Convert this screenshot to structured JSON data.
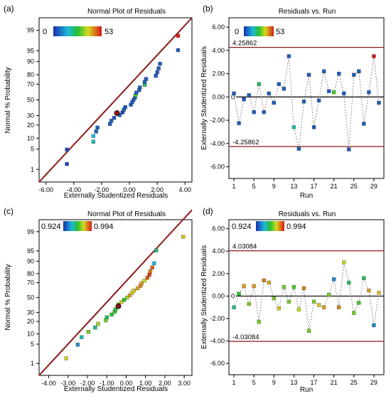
{
  "chart_data": [
    {
      "panel": "(a)",
      "type": "scatter",
      "title": "Normal Plot of Residuals",
      "xlabel": "Externally Studentized Residuals",
      "ylabel": "Normal % Probability",
      "xlim": [
        -6.5,
        4.5
      ],
      "xticks": [
        "-6.00",
        "-4.00",
        "-2.00",
        "0.00",
        "2.00",
        "4.00"
      ],
      "ytick_values": [
        1,
        5,
        10,
        20,
        30,
        50,
        70,
        80,
        90,
        95,
        99
      ],
      "legend": {
        "min": "0",
        "max": "53",
        "min_color": "#1a3fa8",
        "max_color": "#d01818"
      },
      "line": {
        "x": [
          -6.5,
          4.5
        ],
        "p": [
          0.3,
          99.7
        ],
        "color": "#8b1a1a"
      },
      "points": [
        {
          "x": -4.5,
          "p": 1.6,
          "c": 0.05
        },
        {
          "x": -4.5,
          "p": 4.8,
          "c": 0.05
        },
        {
          "x": -2.6,
          "p": 8.1,
          "c": 0.35
        },
        {
          "x": -2.6,
          "p": 11.3,
          "c": 0.3
        },
        {
          "x": -2.4,
          "p": 14.5,
          "c": 0.1
        },
        {
          "x": -2.3,
          "p": 17.7,
          "c": 0.1
        },
        {
          "x": -1.4,
          "p": 21.0,
          "c": 0.1
        },
        {
          "x": -1.3,
          "p": 24.2,
          "c": 0.1
        },
        {
          "x": -1.1,
          "p": 27.4,
          "c": 0.08
        },
        {
          "x": -0.7,
          "p": 30.6,
          "c": 0.1
        },
        {
          "x": -0.5,
          "p": 33.8,
          "c": 0.05
        },
        {
          "x": -0.4,
          "p": 37.1,
          "c": 0.1
        },
        {
          "x": -0.3,
          "p": 40.3,
          "c": 0.08
        },
        {
          "x": 0.1,
          "p": 43.5,
          "c": 0.1
        },
        {
          "x": 0.2,
          "p": 46.8,
          "c": 0.1
        },
        {
          "x": 0.3,
          "p": 50.0,
          "c": 0.1
        },
        {
          "x": 0.4,
          "p": 53.2,
          "c": 0.1
        },
        {
          "x": 0.45,
          "p": 56.5,
          "c": 0.55
        },
        {
          "x": 0.5,
          "p": 59.7,
          "c": 0.1
        },
        {
          "x": 0.7,
          "p": 62.9,
          "c": 0.1
        },
        {
          "x": 0.75,
          "p": 66.1,
          "c": 0.1
        },
        {
          "x": 1.1,
          "p": 69.4,
          "c": 0.45
        },
        {
          "x": 1.1,
          "p": 72.6,
          "c": 0.1
        },
        {
          "x": 1.2,
          "p": 75.8,
          "c": 0.1
        },
        {
          "x": 1.9,
          "p": 79.0,
          "c": 0.1
        },
        {
          "x": 2.0,
          "p": 82.3,
          "c": 0.1
        },
        {
          "x": 2.1,
          "p": 85.5,
          "c": 0.1
        },
        {
          "x": 2.2,
          "p": 88.7,
          "c": 0.1
        },
        {
          "x": 3.5,
          "p": 95.2,
          "c": 0.1
        },
        {
          "x": 3.5,
          "p": 98.4,
          "c": 1.0
        }
      ],
      "highlight": {
        "x": -0.9,
        "p": 33.0
      }
    },
    {
      "panel": "(b)",
      "type": "line",
      "title": "Residuals vs. Run",
      "xlabel": "Run",
      "ylabel": "Externally Studentized Residuals",
      "ylim": [
        -7,
        6.8
      ],
      "xlim": [
        0,
        31
      ],
      "xticks": [
        1,
        5,
        9,
        13,
        17,
        21,
        25,
        29
      ],
      "yticks": [
        "6.00",
        "4.00",
        "2.00",
        "0.00",
        "-2.00",
        "-4.00",
        "-6.00"
      ],
      "upper_limit": {
        "value": 4.25862,
        "label": "4.25862"
      },
      "lower_limit": {
        "value": -4.25862,
        "label": "-4.25862"
      },
      "zero_label": "0",
      "legend": {
        "min": "0",
        "max": "53",
        "min_color": "#1a3fa8",
        "max_color": "#d01818"
      },
      "runs": [
        1,
        2,
        3,
        4,
        5,
        6,
        7,
        8,
        9,
        10,
        11,
        12,
        13,
        14,
        15,
        16,
        17,
        18,
        19,
        20,
        21,
        22,
        23,
        24,
        25,
        26,
        27,
        28,
        29,
        30
      ],
      "values": [
        0.3,
        -2.25,
        -0.2,
        0.15,
        -1.3,
        1.1,
        -1.3,
        0.3,
        -0.5,
        1.1,
        0.7,
        3.5,
        -2.6,
        -4.45,
        -0.4,
        1.9,
        -2.6,
        -0.3,
        2.2,
        0.5,
        0.4,
        2.0,
        0.3,
        -4.5,
        1.9,
        2.2,
        -2.3,
        0.4,
        3.5,
        -0.5
      ],
      "colors": [
        0.1,
        0.1,
        0.1,
        0.1,
        0.1,
        0.45,
        0.1,
        0.1,
        0.1,
        0.1,
        0.1,
        0.1,
        0.35,
        0.1,
        0.1,
        0.1,
        0.1,
        0.1,
        0.1,
        0.1,
        0.55,
        0.1,
        0.1,
        0.1,
        0.1,
        0.1,
        0.1,
        0.1,
        1.0,
        0.1
      ]
    },
    {
      "panel": "(c)",
      "type": "scatter",
      "title": "Normal Plot of Residuals",
      "xlabel": "Externally Studentized Residuals",
      "ylabel": "Normal % Probability",
      "xlim": [
        -4.5,
        3.4
      ],
      "xticks": [
        "-4.00",
        "-3.00",
        "-2.00",
        "-1.00",
        "0.00",
        "1.00",
        "2.00",
        "3.00"
      ],
      "ytick_values": [
        1,
        5,
        10,
        20,
        30,
        50,
        70,
        80,
        90,
        95,
        99
      ],
      "legend": {
        "min": "0.924",
        "max": "0.994",
        "min_color": "#1a3fa8",
        "max_color": "#d01818"
      },
      "line": {
        "x": [
          -4.5,
          3.4
        ],
        "p": [
          0.3,
          99.9
        ],
        "color": "#8b1a1a"
      },
      "points": [
        {
          "x": -3.1,
          "p": 1.6,
          "c": 0.7
        },
        {
          "x": -2.5,
          "p": 4.8,
          "c": 0.2
        },
        {
          "x": -2.3,
          "p": 8.1,
          "c": 0.35
        },
        {
          "x": -1.95,
          "p": 11.3,
          "c": 0.6
        },
        {
          "x": -1.6,
          "p": 14.5,
          "c": 0.4
        },
        {
          "x": -1.45,
          "p": 17.7,
          "c": 0.65
        },
        {
          "x": -1.05,
          "p": 21.0,
          "c": 0.6
        },
        {
          "x": -1.0,
          "p": 24.2,
          "c": 0.45
        },
        {
          "x": -0.75,
          "p": 27.4,
          "c": 0.5
        },
        {
          "x": -0.6,
          "p": 30.6,
          "c": 0.55
        },
        {
          "x": -0.55,
          "p": 33.8,
          "c": 0.5
        },
        {
          "x": -0.45,
          "p": 37.1,
          "c": 0.7
        },
        {
          "x": -0.4,
          "p": 40.3,
          "c": 0.6
        },
        {
          "x": -0.25,
          "p": 43.5,
          "c": 0.75
        },
        {
          "x": -0.1,
          "p": 46.8,
          "c": 0.5
        },
        {
          "x": 0.05,
          "p": 50.0,
          "c": 0.65
        },
        {
          "x": 0.2,
          "p": 53.2,
          "c": 0.8
        },
        {
          "x": 0.3,
          "p": 56.5,
          "c": 0.7
        },
        {
          "x": 0.4,
          "p": 59.7,
          "c": 0.75
        },
        {
          "x": 0.6,
          "p": 62.9,
          "c": 0.8
        },
        {
          "x": 0.75,
          "p": 66.1,
          "c": 0.85
        },
        {
          "x": 0.8,
          "p": 69.4,
          "c": 0.8
        },
        {
          "x": 0.95,
          "p": 72.6,
          "c": 0.7
        },
        {
          "x": 1.1,
          "p": 75.8,
          "c": 0.9
        },
        {
          "x": 1.2,
          "p": 79.0,
          "c": 0.95
        },
        {
          "x": 1.25,
          "p": 82.3,
          "c": 0.85
        },
        {
          "x": 1.35,
          "p": 85.5,
          "c": 0.9
        },
        {
          "x": 1.45,
          "p": 88.7,
          "c": 0.3
        },
        {
          "x": 1.55,
          "p": 95.2,
          "c": 0.4
        },
        {
          "x": 2.95,
          "p": 98.4,
          "c": 0.75
        }
      ],
      "highlight": {
        "x": -0.4,
        "p": 38.0
      }
    },
    {
      "panel": "(d)",
      "type": "line",
      "title": "Residuals vs. Run",
      "xlabel": "Run",
      "ylabel": "Externally Studentized Residuals",
      "ylim": [
        -7,
        6.8
      ],
      "xlim": [
        0,
        31
      ],
      "xticks": [
        1,
        5,
        9,
        13,
        17,
        21,
        25,
        29
      ],
      "yticks": [
        "6.00",
        "4.00",
        "2.00",
        "0.00",
        "-2.00",
        "-4.00",
        "-6.00"
      ],
      "upper_limit": {
        "value": 4.03084,
        "label": "4.03084"
      },
      "lower_limit": {
        "value": -4.03084,
        "label": "-4.03084"
      },
      "zero_label": "0",
      "legend": {
        "min": "0.924",
        "max": "0.994",
        "min_color": "#1a3fa8",
        "max_color": "#d01818"
      },
      "runs": [
        1,
        2,
        3,
        4,
        5,
        6,
        7,
        8,
        9,
        10,
        11,
        12,
        13,
        14,
        15,
        16,
        17,
        18,
        19,
        20,
        21,
        22,
        23,
        24,
        25,
        26,
        27,
        28,
        29,
        30
      ],
      "values": [
        -1.0,
        0.2,
        0.9,
        -0.7,
        0.9,
        -2.3,
        1.4,
        1.2,
        -0.2,
        -1.1,
        0.8,
        -0.5,
        0.8,
        -1.2,
        0.7,
        -3.1,
        -0.5,
        -0.8,
        -1.0,
        0.1,
        1.5,
        -1.0,
        3.0,
        1.2,
        -1.5,
        -0.6,
        1.6,
        0.5,
        -2.6,
        0.3
      ],
      "colors": [
        0.4,
        0.5,
        0.8,
        0.6,
        0.8,
        0.6,
        0.85,
        0.8,
        0.6,
        0.75,
        0.6,
        0.6,
        0.55,
        0.7,
        0.85,
        0.6,
        0.6,
        0.75,
        0.8,
        0.6,
        0.2,
        0.85,
        0.7,
        0.45,
        0.6,
        0.55,
        0.45,
        0.8,
        0.2,
        0.75
      ]
    }
  ]
}
